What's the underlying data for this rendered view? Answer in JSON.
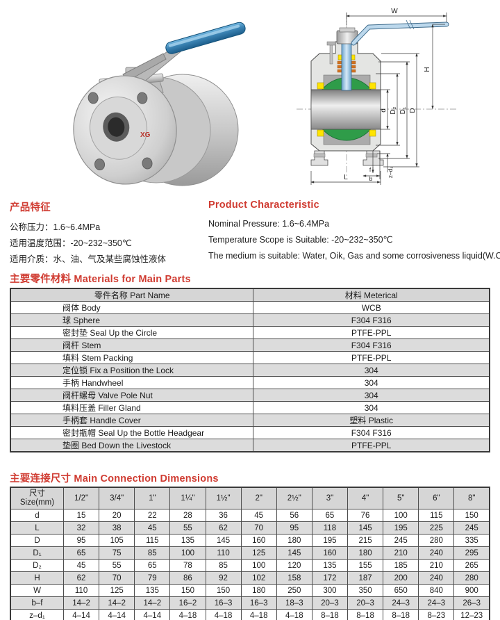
{
  "features": {
    "zh": {
      "title": "产品特征",
      "lines": [
        "公称压力：1.6~6.4MPa",
        "适用温度范围：-20~232~350℃",
        "适用介质：水、油、气及某些腐蚀性液体"
      ]
    },
    "en": {
      "title": "Product Characteristic",
      "lines": [
        "Nominal Pressure: 1.6~6.4MPa",
        "Temperature Scope is Suitable: -20~232~350℃",
        "The medium is suitable: Water, Oik, Gas and some corrosiveness liquid(W.O.G)"
      ]
    }
  },
  "materials": {
    "title": "主要零件材料 Materials for Main Parts",
    "headers": [
      "零件名称 Part Name",
      "材料 Meterical"
    ],
    "rows": [
      [
        "阀体 Body",
        "WCB"
      ],
      [
        "球 Sphere",
        "F304  F316"
      ],
      [
        "密封垫 Seal Up the Circle",
        "PTFE-PPL"
      ],
      [
        "阀杆 Stem",
        "F304  F316"
      ],
      [
        "填料 Stem Packing",
        "PTFE-PPL"
      ],
      [
        "定位锁 Fix a Position the Lock",
        "304"
      ],
      [
        "手柄 Handwheel",
        "304"
      ],
      [
        "阀杆螺母 Valve Pole Nut",
        "304"
      ],
      [
        "填料压盖 Filler Gland",
        "304"
      ],
      [
        "手柄套 Handle Cover",
        "塑料 Plastic"
      ],
      [
        "密封瓶帽 Seal Up the Bottle Headgear",
        "F304  F316"
      ],
      [
        "垫圈 Bed Down the Livestock",
        "PTFE-PPL"
      ]
    ]
  },
  "dimensions": {
    "title": "主要连接尺寸 Main Connection Dimensions",
    "corner_zh": "尺寸",
    "corner_en": "Size(mm)",
    "sizes": [
      "1/2\"",
      "3/4\"",
      "1\"",
      "1¼\"",
      "1½\"",
      "2\"",
      "2½\"",
      "3\"",
      "4\"",
      "5\"",
      "6\"",
      "8\""
    ],
    "rows": [
      {
        "label": "d",
        "values": [
          "15",
          "20",
          "22",
          "28",
          "36",
          "45",
          "56",
          "65",
          "76",
          "100",
          "115",
          "150"
        ]
      },
      {
        "label": "L",
        "values": [
          "32",
          "38",
          "45",
          "55",
          "62",
          "70",
          "95",
          "118",
          "145",
          "195",
          "225",
          "245"
        ]
      },
      {
        "label": "D",
        "values": [
          "95",
          "105",
          "115",
          "135",
          "145",
          "160",
          "180",
          "195",
          "215",
          "245",
          "280",
          "335"
        ]
      },
      {
        "label": "D₁",
        "values": [
          "65",
          "75",
          "85",
          "100",
          "110",
          "125",
          "145",
          "160",
          "180",
          "210",
          "240",
          "295"
        ]
      },
      {
        "label": "D₂",
        "values": [
          "45",
          "55",
          "65",
          "78",
          "85",
          "100",
          "120",
          "135",
          "155",
          "185",
          "210",
          "265"
        ]
      },
      {
        "label": "H",
        "values": [
          "62",
          "70",
          "79",
          "86",
          "92",
          "102",
          "158",
          "172",
          "187",
          "200",
          "240",
          "280"
        ]
      },
      {
        "label": "W",
        "values": [
          "110",
          "125",
          "135",
          "150",
          "150",
          "180",
          "250",
          "300",
          "350",
          "650",
          "840",
          "900"
        ]
      },
      {
        "label": "b–f",
        "values": [
          "14–2",
          "14–2",
          "14–2",
          "16–2",
          "16–3",
          "16–3",
          "18–3",
          "20–3",
          "20–3",
          "24–3",
          "24–3",
          "26–3"
        ]
      },
      {
        "label": "z–d₁",
        "values": [
          "4–14",
          "4–14",
          "4–14",
          "4–18",
          "4–18",
          "4–18",
          "4–18",
          "8–18",
          "8–18",
          "8–18",
          "8–23",
          "12–23"
        ]
      }
    ]
  },
  "diagram": {
    "labels": {
      "w": "W",
      "h": "H",
      "d": "d",
      "d2": "D₂",
      "d1": "D₁",
      "dd": "D",
      "l": "L",
      "b": "b",
      "f": "f",
      "zd1": "z–d₁"
    }
  },
  "photo": {
    "mark": "XG"
  },
  "colors": {
    "heading_red": "#d03c32",
    "table_header_gray": "#d6d6d6",
    "row_alt_gray": "#dcdcdc",
    "ball_green": "#2f9c49",
    "seat_yellow": "#ffe400",
    "handle_blue": "#3d85b5"
  }
}
